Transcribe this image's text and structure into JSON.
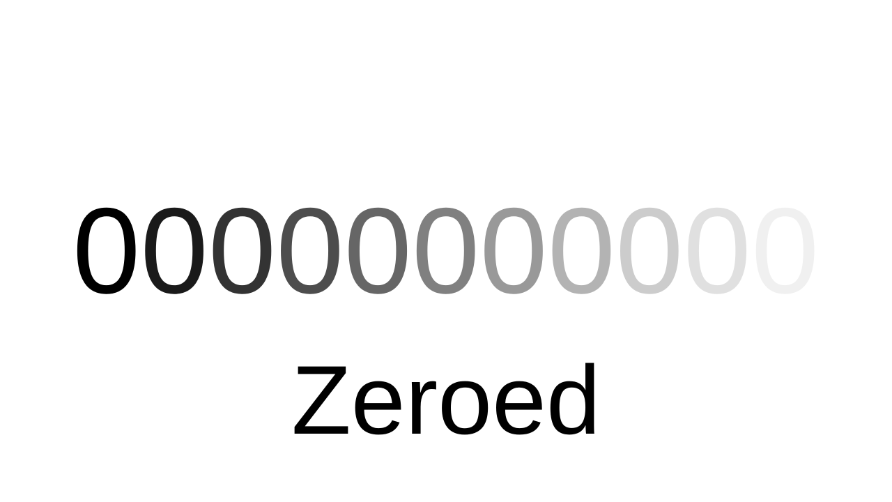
{
  "digits": {
    "items": [
      {
        "text": "0",
        "color": "#000000"
      },
      {
        "text": "0",
        "color": "#1a1a1a"
      },
      {
        "text": "0",
        "color": "#333333"
      },
      {
        "text": "0",
        "color": "#4d4d4d"
      },
      {
        "text": "0",
        "color": "#666666"
      },
      {
        "text": "0",
        "color": "#808080"
      },
      {
        "text": "0",
        "color": "#999999"
      },
      {
        "text": "0",
        "color": "#b3b3b3"
      },
      {
        "text": "0",
        "color": "#cccccc"
      },
      {
        "text": "0",
        "color": "#e0e0e0"
      },
      {
        "text": "0",
        "color": "#f0f0f0"
      }
    ]
  },
  "caption": {
    "text": "Zeroed",
    "color": "#000000"
  }
}
